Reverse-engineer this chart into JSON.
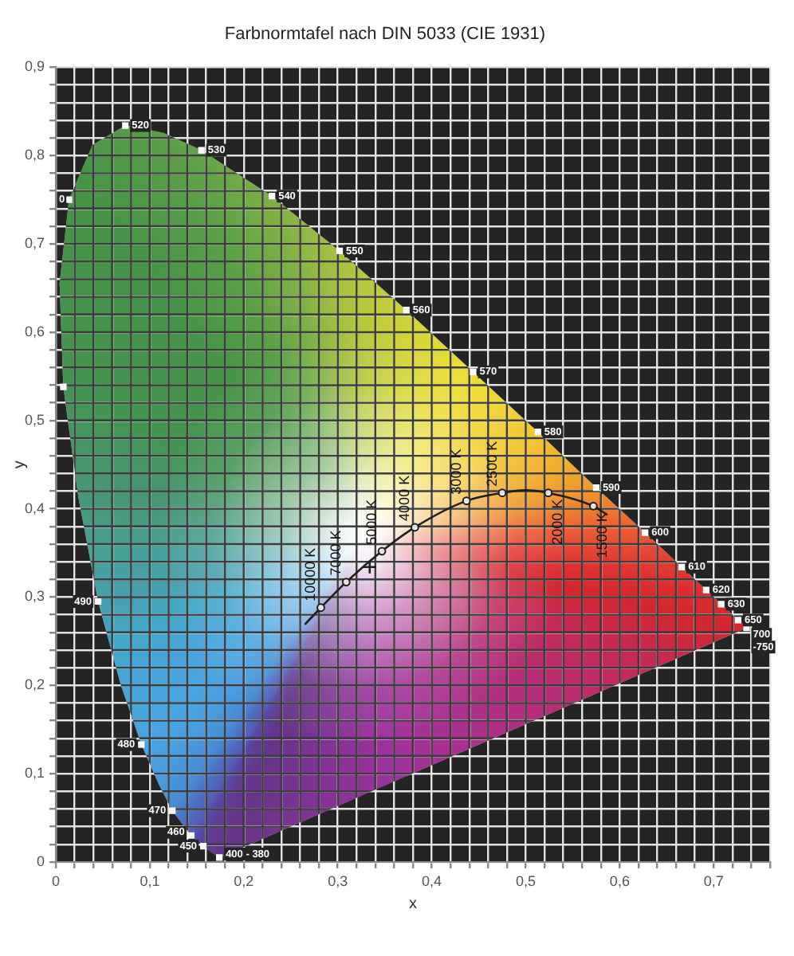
{
  "chart_data": {
    "type": "line",
    "title": "Farbnormtafel nach DIN 5033 (CIE 1931)",
    "xlabel": "x",
    "ylabel": "y",
    "xlim": [
      0,
      0.76
    ],
    "ylim": [
      0,
      0.9
    ],
    "xticks": [
      0,
      {
        "value": 0.02,
        "label": null
      },
      {
        "value": 0.04,
        "label": null
      },
      {
        "value": 0.06,
        "label": null
      },
      {
        "value": 0.08,
        "label": null
      },
      {
        "value": 0.1,
        "label": "0,1"
      },
      {
        "value": 0.12,
        "label": null
      },
      {
        "value": 0.14,
        "label": null
      },
      {
        "value": 0.16,
        "label": null
      },
      {
        "value": 0.18,
        "label": null
      },
      {
        "value": 0.2,
        "label": "0,2"
      },
      {
        "value": 0.22,
        "label": null
      },
      {
        "value": 0.24,
        "label": null
      },
      {
        "value": 0.26,
        "label": null
      },
      {
        "value": 0.28,
        "label": null
      },
      {
        "value": 0.3,
        "label": "0,3"
      },
      {
        "value": 0.32,
        "label": null
      },
      {
        "value": 0.34,
        "label": null
      },
      {
        "value": 0.36,
        "label": null
      },
      {
        "value": 0.38,
        "label": null
      },
      {
        "value": 0.4,
        "label": "0,4"
      },
      {
        "value": 0.42,
        "label": null
      },
      {
        "value": 0.44,
        "label": null
      },
      {
        "value": 0.46,
        "label": null
      },
      {
        "value": 0.48,
        "label": null
      },
      {
        "value": 0.5,
        "label": "0,5"
      },
      {
        "value": 0.52,
        "label": null
      },
      {
        "value": 0.54,
        "label": null
      },
      {
        "value": 0.56,
        "label": null
      },
      {
        "value": 0.58,
        "label": null
      },
      {
        "value": 0.6,
        "label": "0,6"
      },
      {
        "value": 0.62,
        "label": null
      },
      {
        "value": 0.64,
        "label": null
      },
      {
        "value": 0.66,
        "label": null
      },
      {
        "value": 0.68,
        "label": null
      },
      {
        "value": 0.7,
        "label": "0,7"
      },
      {
        "value": 0.72,
        "label": null
      },
      {
        "value": 0.74,
        "label": null
      },
      {
        "value": 0.76,
        "label": null
      }
    ],
    "yticks": [
      0,
      {
        "value": 0.02,
        "label": null
      },
      {
        "value": 0.04,
        "label": null
      },
      {
        "value": 0.06,
        "label": null
      },
      {
        "value": 0.08,
        "label": null
      },
      {
        "value": 0.1,
        "label": "0,1"
      },
      {
        "value": 0.12,
        "label": null
      },
      {
        "value": 0.14,
        "label": null
      },
      {
        "value": 0.16,
        "label": null
      },
      {
        "value": 0.18,
        "label": null
      },
      {
        "value": 0.2,
        "label": "0,2"
      },
      {
        "value": 0.22,
        "label": null
      },
      {
        "value": 0.24,
        "label": null
      },
      {
        "value": 0.26,
        "label": null
      },
      {
        "value": 0.28,
        "label": null
      },
      {
        "value": 0.3,
        "label": "0,3"
      },
      {
        "value": 0.32,
        "label": null
      },
      {
        "value": 0.34,
        "label": null
      },
      {
        "value": 0.36,
        "label": null
      },
      {
        "value": 0.38,
        "label": null
      },
      {
        "value": 0.4,
        "label": "0,4"
      },
      {
        "value": 0.42,
        "label": null
      },
      {
        "value": 0.44,
        "label": null
      },
      {
        "value": 0.46,
        "label": null
      },
      {
        "value": 0.48,
        "label": null
      },
      {
        "value": 0.5,
        "label": "0,5"
      },
      {
        "value": 0.52,
        "label": null
      },
      {
        "value": 0.54,
        "label": null
      },
      {
        "value": 0.56,
        "label": null
      },
      {
        "value": 0.58,
        "label": null
      },
      {
        "value": 0.6,
        "label": "0,6"
      },
      {
        "value": 0.62,
        "label": null
      },
      {
        "value": 0.64,
        "label": null
      },
      {
        "value": 0.66,
        "label": null
      },
      {
        "value": 0.68,
        "label": null
      },
      {
        "value": 0.7,
        "label": "0,7"
      },
      {
        "value": 0.72,
        "label": null
      },
      {
        "value": 0.74,
        "label": null
      },
      {
        "value": 0.76,
        "label": null
      },
      {
        "value": 0.78,
        "label": null
      },
      {
        "value": 0.8,
        "label": "0,8"
      },
      {
        "value": 0.82,
        "label": null
      },
      {
        "value": 0.84,
        "label": null
      },
      {
        "value": 0.86,
        "label": null
      },
      {
        "value": 0.88,
        "label": null
      },
      {
        "value": 0.9,
        "label": "0,9"
      }
    ],
    "grid": true,
    "series": [
      {
        "type": "area",
        "x": [
          0.174,
          0.157,
          0.144,
          0.124,
          0.11,
          0.091,
          0.069,
          0.045,
          0.024,
          0.008,
          0.004,
          0.014,
          0.039,
          0.074,
          0.114,
          0.155,
          0.23,
          0.302,
          0.373,
          0.444,
          0.513,
          0.575,
          0.627,
          0.666,
          0.692,
          0.708,
          0.726,
          0.735
        ],
        "values": [
          0.005,
          0.018,
          0.03,
          0.058,
          0.087,
          0.133,
          0.201,
          0.295,
          0.413,
          0.538,
          0.655,
          0.75,
          0.812,
          0.834,
          0.826,
          0.806,
          0.754,
          0.692,
          0.625,
          0.555,
          0.487,
          0.424,
          0.373,
          0.334,
          0.308,
          0.292,
          0.274,
          0.265
        ],
        "colors": [
          "#5b2a82",
          "#5a3390",
          "#4a55b0",
          "#3f86d0",
          "#3f95dc",
          "#40a0e0",
          "#3fa0d8",
          "#3f9aa8",
          "#3d9270",
          "#3a8f4a",
          "#3a8e42",
          "#3d8e40",
          "#43923e",
          "#4a963e",
          "#52993e",
          "#5ca03e",
          "#78ac3c",
          "#a4bf38",
          "#cdd030",
          "#ecdc28",
          "#f2c424",
          "#ef9322",
          "#e8502a",
          "#e0302a",
          "#dc2426",
          "#d82024",
          "#d41e24",
          "#d01c24"
        ]
      },
      {
        "type": "line",
        "color": "#1e1e1e",
        "marker": "none",
        "line_style": "solid",
        "x": [
          0.265,
          0.282,
          0.309,
          0.347,
          0.382,
          0.437,
          0.475,
          0.499,
          0.524,
          0.572,
          0.587
        ],
        "values": [
          0.269,
          0.288,
          0.317,
          0.352,
          0.379,
          0.409,
          0.418,
          0.421,
          0.418,
          0.403,
          0.393
        ]
      },
      {
        "type": "scatter",
        "color": "#1e1e1e",
        "marker": "circle",
        "x": [
          0.282,
          0.309,
          0.347,
          0.382,
          0.437,
          0.475,
          0.524,
          0.572
        ],
        "values": [
          0.288,
          0.317,
          0.352,
          0.379,
          0.409,
          0.418,
          0.418,
          0.403
        ]
      },
      {
        "type": "scatter",
        "color": "#1e1e1e",
        "marker": "cross",
        "x": [
          0.334
        ],
        "values": [
          0.334
        ]
      },
      {
        "type": "scatter",
        "color": "#ffffff",
        "marker": "square",
        "x": [
          0.174,
          0.157,
          0.144,
          0.124,
          0.091,
          0.045,
          0.008,
          0.014,
          0.074,
          0.155,
          0.23,
          0.302,
          0.373,
          0.444,
          0.513,
          0.575,
          0.627,
          0.666,
          0.692,
          0.708,
          0.726,
          0.735
        ],
        "values": [
          0.005,
          0.018,
          0.03,
          0.058,
          0.133,
          0.295,
          0.538,
          0.75,
          0.834,
          0.806,
          0.754,
          0.692,
          0.625,
          0.555,
          0.487,
          0.424,
          0.373,
          0.334,
          0.308,
          0.292,
          0.274,
          0.265
        ]
      }
    ],
    "annotations": [
      {
        "text": "400 - 380",
        "x": 0.174,
        "y": 0.005
      },
      {
        "text": "450",
        "x": 0.157,
        "y": 0.018
      },
      {
        "text": "460",
        "x": 0.144,
        "y": 0.03
      },
      {
        "text": "470",
        "x": 0.124,
        "y": 0.058
      },
      {
        "text": "480",
        "x": 0.091,
        "y": 0.133
      },
      {
        "text": "490",
        "x": 0.045,
        "y": 0.295
      },
      {
        "text": "0",
        "x": 0.014,
        "y": 0.75
      },
      {
        "text": "520",
        "x": 0.074,
        "y": 0.834
      },
      {
        "text": "530",
        "x": 0.155,
        "y": 0.806
      },
      {
        "text": "540",
        "x": 0.23,
        "y": 0.754
      },
      {
        "text": "550",
        "x": 0.302,
        "y": 0.692
      },
      {
        "text": "560",
        "x": 0.373,
        "y": 0.625
      },
      {
        "text": "570",
        "x": 0.444,
        "y": 0.555
      },
      {
        "text": "580",
        "x": 0.513,
        "y": 0.487
      },
      {
        "text": "590",
        "x": 0.575,
        "y": 0.424
      },
      {
        "text": "600",
        "x": 0.627,
        "y": 0.373
      },
      {
        "text": "610",
        "x": 0.666,
        "y": 0.334
      },
      {
        "text": "620",
        "x": 0.692,
        "y": 0.308
      },
      {
        "text": "630",
        "x": 0.708,
        "y": 0.292
      },
      {
        "text": "650",
        "x": 0.726,
        "y": 0.274
      },
      {
        "text": "700",
        "x": 0.735,
        "y": 0.265
      },
      {
        "text": "-750",
        "x": 0.735,
        "y": 0.265
      },
      {
        "text": "10000 K",
        "x": 0.282,
        "y": 0.288
      },
      {
        "text": "7000 K",
        "x": 0.309,
        "y": 0.317
      },
      {
        "text": "5000 K",
        "x": 0.347,
        "y": 0.352
      },
      {
        "text": "4000 K",
        "x": 0.382,
        "y": 0.379
      },
      {
        "text": "3000 K",
        "x": 0.437,
        "y": 0.409
      },
      {
        "text": "2500 K",
        "x": 0.475,
        "y": 0.418
      },
      {
        "text": "2000 K",
        "x": 0.524,
        "y": 0.418
      },
      {
        "text": "1500 K",
        "x": 0.572,
        "y": 0.403
      }
    ]
  }
}
